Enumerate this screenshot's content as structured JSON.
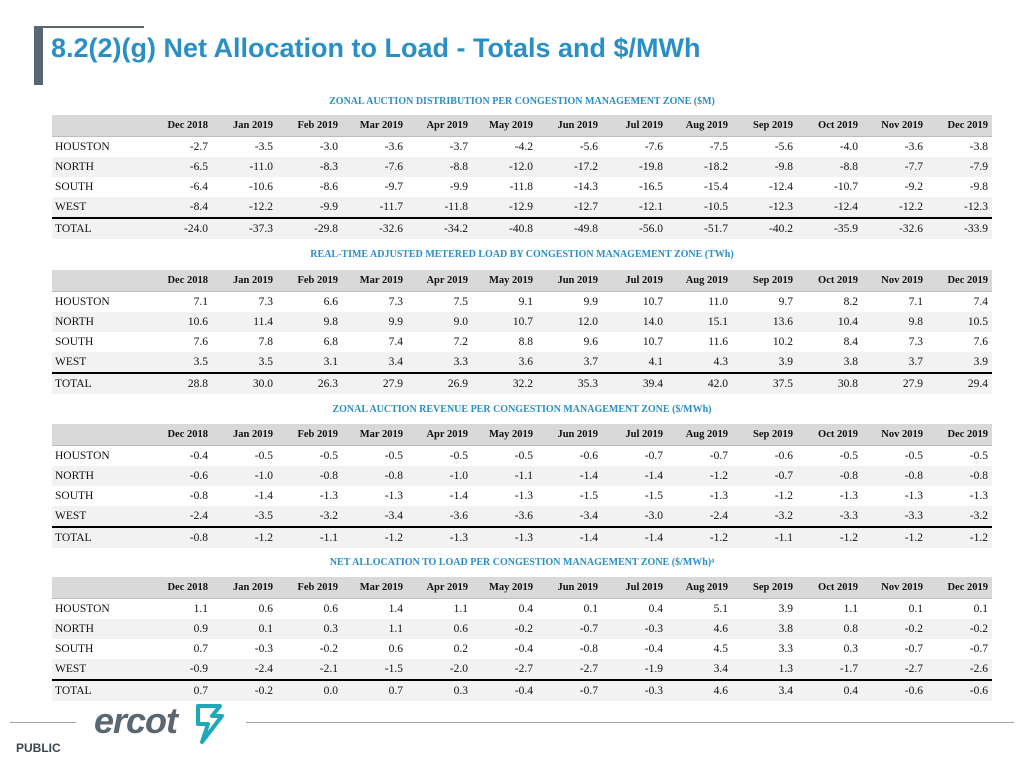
{
  "page": {
    "title": "8.2(2)(g) Net Allocation to Load - Totals and $/MWh",
    "footer_label": "PUBLIC",
    "logo_text": "ercot"
  },
  "columns": [
    "Dec 2018",
    "Jan 2019",
    "Feb 2019",
    "Mar 2019",
    "Apr 2019",
    "May 2019",
    "Jun 2019",
    "Jul 2019",
    "Aug 2019",
    "Sep 2019",
    "Oct 2019",
    "Nov 2019",
    "Dec 2019"
  ],
  "tables": [
    {
      "title": "ZONAL AUCTION DISTRIBUTION PER CONGESTION MANAGEMENT ZONE ($M)",
      "rows": [
        {
          "label": "HOUSTON",
          "values": [
            "-2.7",
            "-3.5",
            "-3.0",
            "-3.6",
            "-3.7",
            "-4.2",
            "-5.6",
            "-7.6",
            "-7.5",
            "-5.6",
            "-4.0",
            "-3.6",
            "-3.8"
          ]
        },
        {
          "label": "NORTH",
          "values": [
            "-6.5",
            "-11.0",
            "-8.3",
            "-7.6",
            "-8.8",
            "-12.0",
            "-17.2",
            "-19.8",
            "-18.2",
            "-9.8",
            "-8.8",
            "-7.7",
            "-7.9"
          ]
        },
        {
          "label": "SOUTH",
          "values": [
            "-6.4",
            "-10.6",
            "-8.6",
            "-9.7",
            "-9.9",
            "-11.8",
            "-14.3",
            "-16.5",
            "-15.4",
            "-12.4",
            "-10.7",
            "-9.2",
            "-9.8"
          ]
        },
        {
          "label": "WEST",
          "values": [
            "-8.4",
            "-12.2",
            "-9.9",
            "-11.7",
            "-11.8",
            "-12.9",
            "-12.7",
            "-12.1",
            "-10.5",
            "-12.3",
            "-12.4",
            "-12.2",
            "-12.3"
          ]
        },
        {
          "label": "TOTAL",
          "values": [
            "-24.0",
            "-37.3",
            "-29.8",
            "-32.6",
            "-34.2",
            "-40.8",
            "-49.8",
            "-56.0",
            "-51.7",
            "-40.2",
            "-35.9",
            "-32.6",
            "-33.9"
          ]
        }
      ]
    },
    {
      "title": "REAL-TIME ADJUSTED METERED LOAD BY CONGESTION MANAGEMENT ZONE (TWh)",
      "rows": [
        {
          "label": "HOUSTON",
          "values": [
            "7.1",
            "7.3",
            "6.6",
            "7.3",
            "7.5",
            "9.1",
            "9.9",
            "10.7",
            "11.0",
            "9.7",
            "8.2",
            "7.1",
            "7.4"
          ]
        },
        {
          "label": "NORTH",
          "values": [
            "10.6",
            "11.4",
            "9.8",
            "9.9",
            "9.0",
            "10.7",
            "12.0",
            "14.0",
            "15.1",
            "13.6",
            "10.4",
            "9.8",
            "10.5"
          ]
        },
        {
          "label": "SOUTH",
          "values": [
            "7.6",
            "7.8",
            "6.8",
            "7.4",
            "7.2",
            "8.8",
            "9.6",
            "10.7",
            "11.6",
            "10.2",
            "8.4",
            "7.3",
            "7.6"
          ]
        },
        {
          "label": "WEST",
          "values": [
            "3.5",
            "3.5",
            "3.1",
            "3.4",
            "3.3",
            "3.6",
            "3.7",
            "4.1",
            "4.3",
            "3.9",
            "3.8",
            "3.7",
            "3.9"
          ]
        },
        {
          "label": "TOTAL",
          "values": [
            "28.8",
            "30.0",
            "26.3",
            "27.9",
            "26.9",
            "32.2",
            "35.3",
            "39.4",
            "42.0",
            "37.5",
            "30.8",
            "27.9",
            "29.4"
          ]
        }
      ]
    },
    {
      "title": "ZONAL AUCTION REVENUE PER CONGESTION MANAGEMENT ZONE ($/MWh)",
      "rows": [
        {
          "label": "HOUSTON",
          "values": [
            "-0.4",
            "-0.5",
            "-0.5",
            "-0.5",
            "-0.5",
            "-0.5",
            "-0.6",
            "-0.7",
            "-0.7",
            "-0.6",
            "-0.5",
            "-0.5",
            "-0.5"
          ]
        },
        {
          "label": "NORTH",
          "values": [
            "-0.6",
            "-1.0",
            "-0.8",
            "-0.8",
            "-1.0",
            "-1.1",
            "-1.4",
            "-1.4",
            "-1.2",
            "-0.7",
            "-0.8",
            "-0.8",
            "-0.8"
          ]
        },
        {
          "label": "SOUTH",
          "values": [
            "-0.8",
            "-1.4",
            "-1.3",
            "-1.3",
            "-1.4",
            "-1.3",
            "-1.5",
            "-1.5",
            "-1.3",
            "-1.2",
            "-1.3",
            "-1.3",
            "-1.3"
          ]
        },
        {
          "label": "WEST",
          "values": [
            "-2.4",
            "-3.5",
            "-3.2",
            "-3.4",
            "-3.6",
            "-3.6",
            "-3.4",
            "-3.0",
            "-2.4",
            "-3.2",
            "-3.3",
            "-3.3",
            "-3.2"
          ]
        },
        {
          "label": "TOTAL",
          "values": [
            "-0.8",
            "-1.2",
            "-1.1",
            "-1.2",
            "-1.3",
            "-1.3",
            "-1.4",
            "-1.4",
            "-1.2",
            "-1.1",
            "-1.2",
            "-1.2",
            "-1.2"
          ]
        }
      ]
    },
    {
      "title": "NET ALLOCATION TO LOAD PER CONGESTION MANAGEMENT ZONE ($/MWh)⁴",
      "rows": [
        {
          "label": "HOUSTON",
          "values": [
            "1.1",
            "0.6",
            "0.6",
            "1.4",
            "1.1",
            "0.4",
            "0.1",
            "0.4",
            "5.1",
            "3.9",
            "1.1",
            "0.1",
            "0.1"
          ]
        },
        {
          "label": "NORTH",
          "values": [
            "0.9",
            "0.1",
            "0.3",
            "1.1",
            "0.6",
            "-0.2",
            "-0.7",
            "-0.3",
            "4.6",
            "3.8",
            "0.8",
            "-0.2",
            "-0.2"
          ]
        },
        {
          "label": "SOUTH",
          "values": [
            "0.7",
            "-0.3",
            "-0.2",
            "0.6",
            "0.2",
            "-0.4",
            "-0.8",
            "-0.4",
            "4.5",
            "3.3",
            "0.3",
            "-0.7",
            "-0.7"
          ]
        },
        {
          "label": "WEST",
          "values": [
            "-0.9",
            "-2.4",
            "-2.1",
            "-1.5",
            "-2.0",
            "-2.7",
            "-2.7",
            "-1.9",
            "3.4",
            "1.3",
            "-1.7",
            "-2.7",
            "-2.6"
          ]
        },
        {
          "label": "TOTAL",
          "values": [
            "0.7",
            "-0.2",
            "0.0",
            "0.7",
            "0.3",
            "-0.4",
            "-0.7",
            "-0.3",
            "4.6",
            "3.4",
            "0.4",
            "-0.6",
            "-0.6"
          ]
        }
      ]
    }
  ],
  "colors": {
    "title_blue": "#2a8fc4",
    "header_gray": "#d9d9d9",
    "logo_teal": "#1fa8b8",
    "logo_gray": "#5a6670"
  }
}
